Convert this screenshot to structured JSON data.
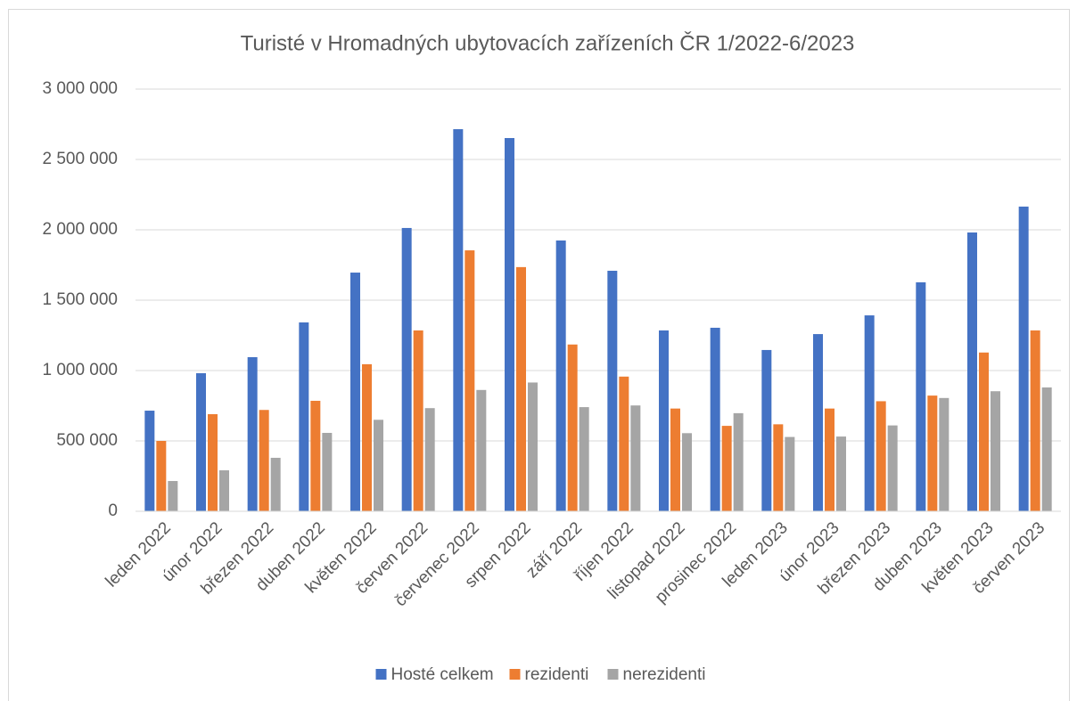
{
  "chart_data": {
    "type": "bar",
    "title": "Turisté v Hromadných ubytovacích zařízeních ČR 1/2022-6/2023",
    "categories": [
      "leden 2022",
      "únor 2022",
      "březen 2022",
      "duben 2022",
      "květen 2022",
      "červen 2022",
      "červenec 2022",
      "srpen 2022",
      "září 2022",
      "říjen 2022",
      "listopad 2022",
      "prosinec 2022",
      "leden 2023",
      "únor 2023",
      "březen 2023",
      "duben 2023",
      "květen 2023",
      "červen 2023"
    ],
    "series": [
      {
        "name": "Hosté celkem",
        "color": "#4472c4",
        "values": [
          715000,
          981000,
          1095000,
          1342000,
          1696000,
          2013000,
          2715000,
          2652000,
          1924000,
          1709000,
          1285000,
          1304000,
          1146000,
          1259000,
          1392000,
          1627000,
          1981000,
          2165000
        ]
      },
      {
        "name": "rezidenti",
        "color": "#ed7d31",
        "values": [
          500000,
          690000,
          720000,
          785000,
          1045000,
          1285000,
          1854000,
          1735000,
          1185000,
          957000,
          730000,
          607000,
          618000,
          730000,
          782000,
          822000,
          1128000,
          1285000
        ]
      },
      {
        "name": "nerezidenti",
        "color": "#a5a5a5",
        "values": [
          215000,
          291000,
          380000,
          557000,
          650000,
          733000,
          862000,
          915000,
          740000,
          752000,
          555000,
          697000,
          528000,
          531000,
          610000,
          805000,
          853000,
          880000
        ]
      }
    ],
    "ylim": [
      0,
      3000000
    ],
    "yticks": [
      0,
      {
        "value": 500000,
        "label": "500 000"
      },
      {
        "value": 1000000,
        "label": "1 000 000"
      },
      {
        "value": 1500000,
        "label": "1 500 000"
      },
      {
        "value": 2000000,
        "label": "2 000 000"
      },
      {
        "value": 2500000,
        "label": "2 500 000"
      },
      {
        "value": 3000000,
        "label": "3 000 000"
      }
    ],
    "grid": true,
    "legend": "bottom"
  }
}
